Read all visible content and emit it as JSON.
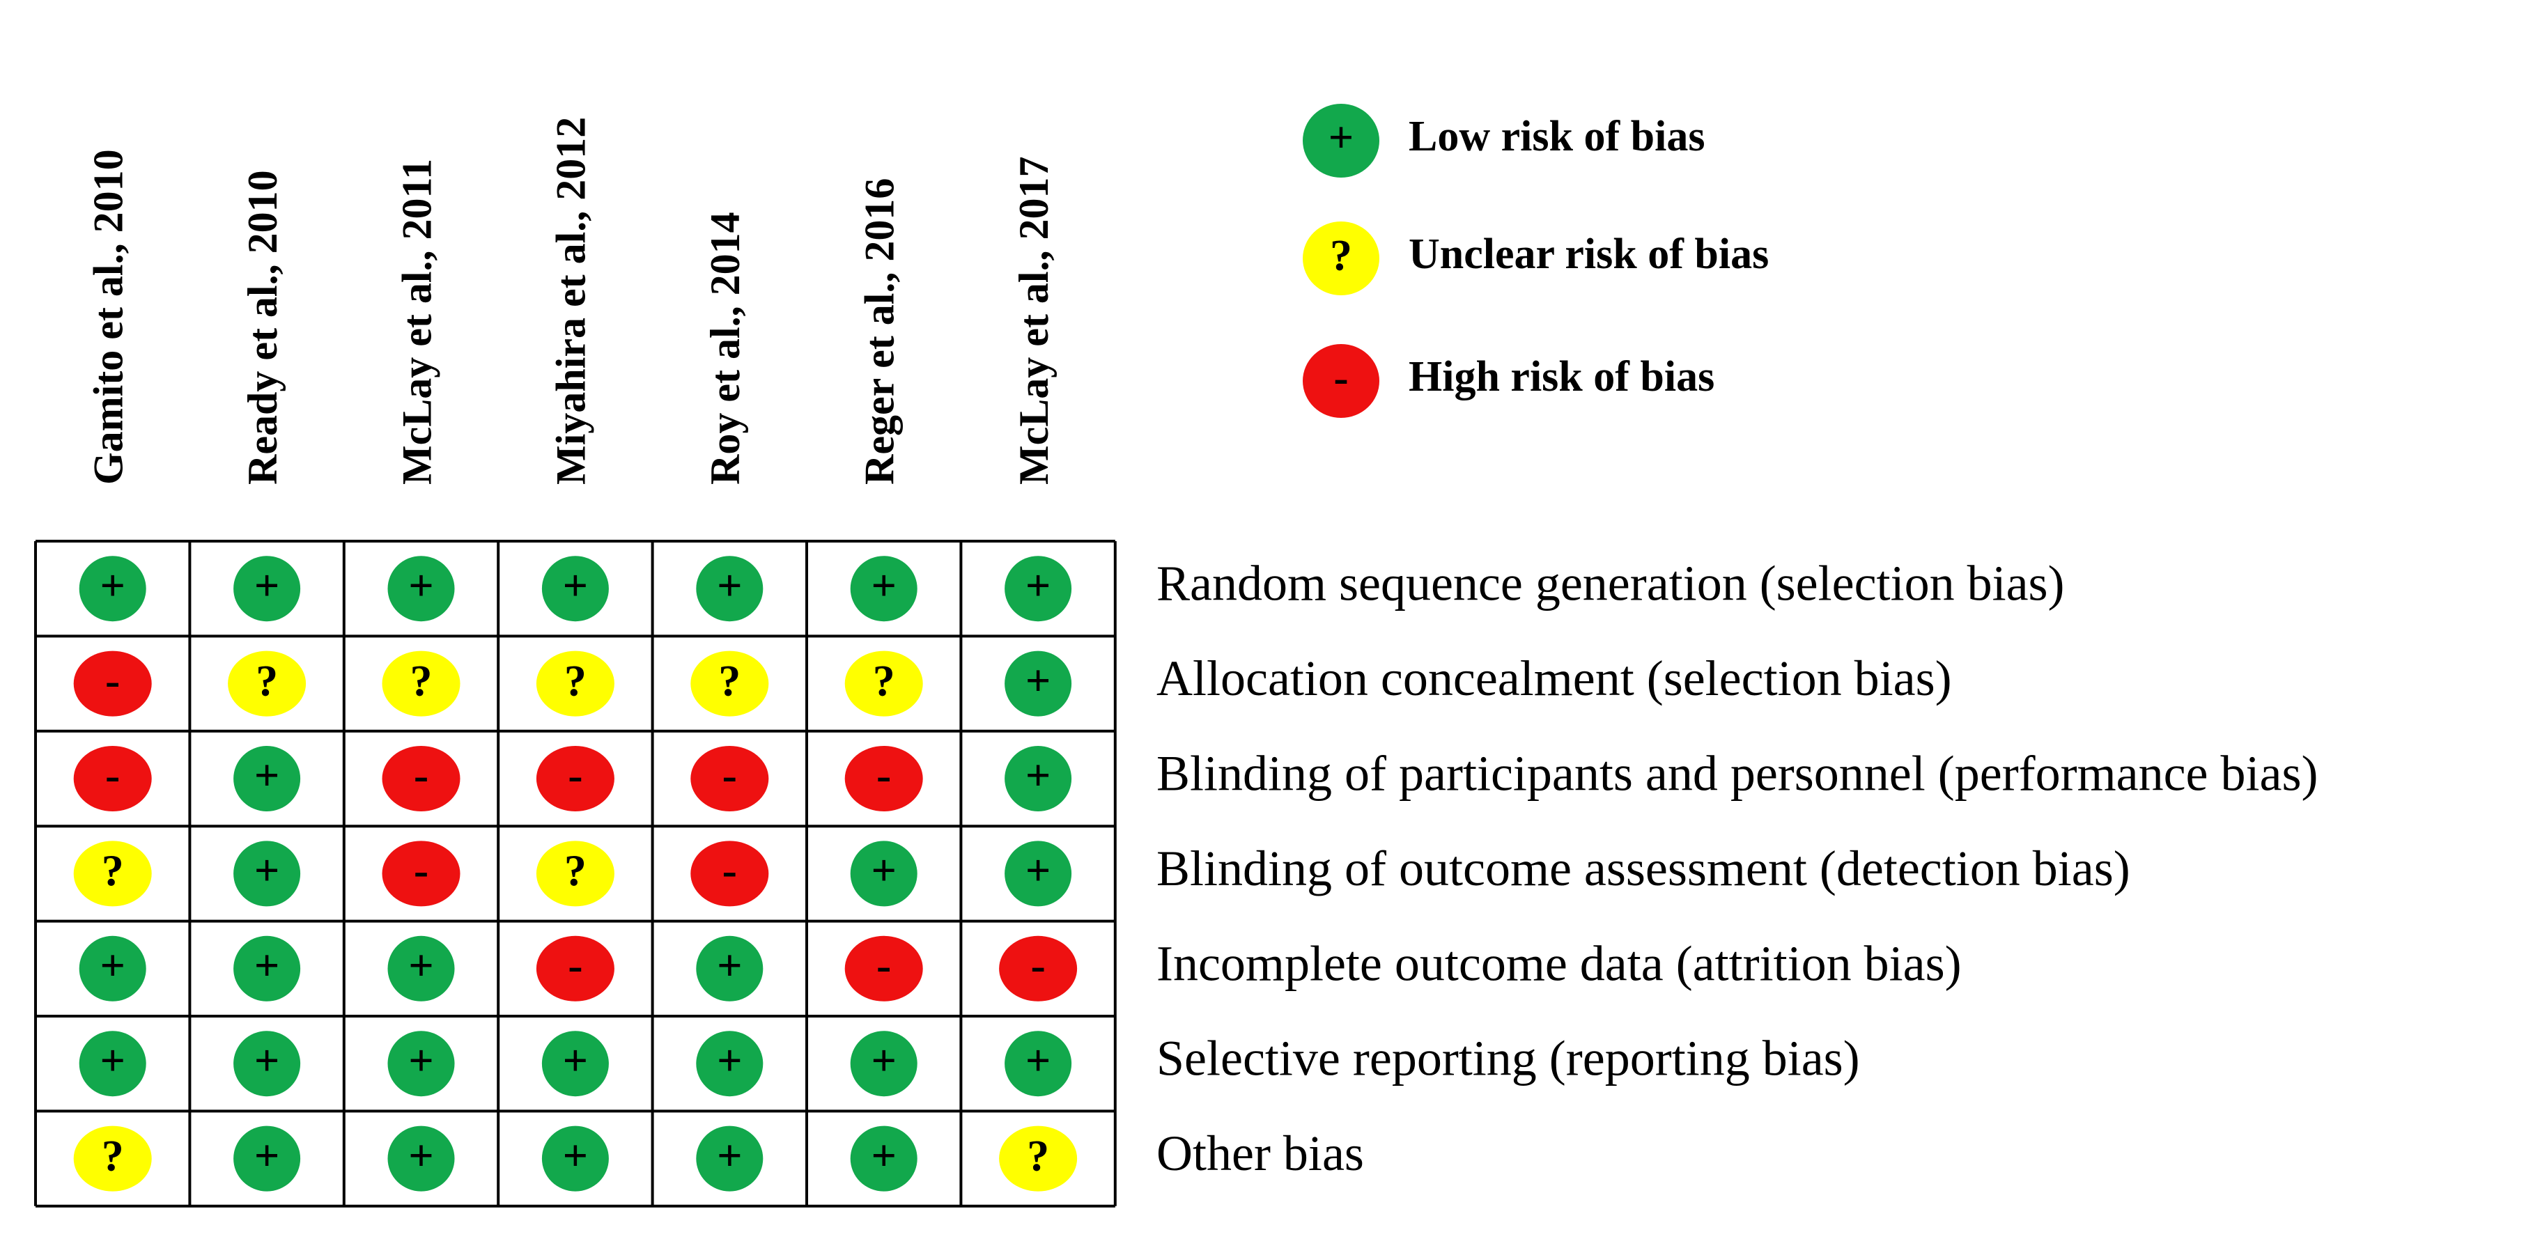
{
  "studies": [
    "Gamito et al., 2010",
    "Ready et al., 2010",
    "McLay et al., 2011",
    "Miyahira et al., 2012",
    "Roy et al., 2014",
    "Reger et al., 2016",
    "McLay et al., 2017"
  ],
  "legend": [
    {
      "symbol": "+",
      "label": "Low risk of bias",
      "color": "#12a84c"
    },
    {
      "symbol": "?",
      "label": "Unclear risk of bias",
      "color": "#ffff00"
    },
    {
      "symbol": "-",
      "label": "High risk of bias",
      "color": "#ee1111"
    }
  ],
  "domains": [
    "Random sequence generation (selection bias)",
    "Allocation concealment (selection bias)",
    "Blinding of participants and personnel (performance bias)",
    "Blinding of outcome assessment (detection bias)",
    "Incomplete outcome data (attrition bias)",
    "Selective reporting (reporting bias)",
    "Other bias"
  ],
  "judgments": [
    [
      "+",
      "+",
      "+",
      "+",
      "+",
      "+",
      "+"
    ],
    [
      "-",
      "?",
      "?",
      "?",
      "?",
      "?",
      "+"
    ],
    [
      "-",
      "+",
      "-",
      "-",
      "-",
      "-",
      "+"
    ],
    [
      "?",
      "+",
      "-",
      "?",
      "-",
      "+",
      "+"
    ],
    [
      "+",
      "+",
      "+",
      "-",
      "+",
      "-",
      "-"
    ],
    [
      "+",
      "+",
      "+",
      "+",
      "+",
      "+",
      "+"
    ],
    [
      "?",
      "+",
      "+",
      "+",
      "+",
      "+",
      "?"
    ]
  ]
}
